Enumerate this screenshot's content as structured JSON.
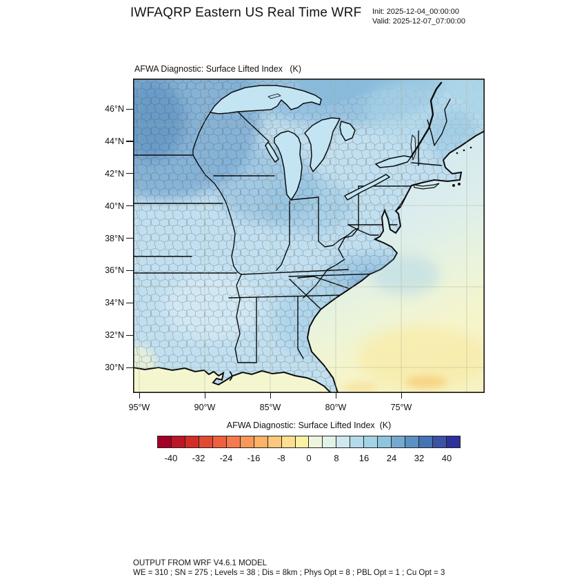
{
  "header": {
    "title": "IWFAQRP Eastern US Real Time WRF",
    "init_label": "Init: 2025-12-04_00:00:00",
    "valid_label": "Valid: 2025-12-07_07:00:00"
  },
  "plot": {
    "title": "AFWA Diagnostic: Surface Lifted Index   (K)",
    "y_ticks": [
      "46°N",
      "44°N",
      "42°N",
      "40°N",
      "38°N",
      "36°N",
      "34°N",
      "32°N",
      "30°N"
    ],
    "x_ticks": [
      "95°W",
      "90°W",
      "85°W",
      "80°W",
      "75°W"
    ]
  },
  "colorbar": {
    "title": "AFWA Diagnostic: Surface Lifted Index  (K)",
    "tick_labels": [
      "-40",
      "-32",
      "-24",
      "-16",
      "-8",
      "0",
      "8",
      "16",
      "24",
      "32",
      "40"
    ],
    "colors": [
      "#a50026",
      "#bc1726",
      "#d42d27",
      "#e04a33",
      "#ee613e",
      "#f57b4c",
      "#f99858",
      "#fdb366",
      "#fdc87b",
      "#fede90",
      "#fcf0a5",
      "#eff5dc",
      "#e2f2e7",
      "#cfe8f0",
      "#b5dbea",
      "#a3d3e5",
      "#8ec4dd",
      "#73aace",
      "#5b91c3",
      "#4574b4",
      "#3b53a5",
      "#2e319a"
    ]
  },
  "footer": {
    "line1": "OUTPUT FROM WRF V4.6.1 MODEL",
    "line2": "WE = 310 ; SN = 275 ; Levels = 38 ; Dis = 8km ; Phys Opt = 8 ; PBL Opt = 1 ; Cu Opt = 3"
  },
  "chart_data": {
    "type": "heatmap",
    "title": "AFWA Diagnostic: Surface Lifted Index (K)",
    "suptitle": "IWFAQRP Eastern US Real Time WRF",
    "init_time": "2025-12-04_00:00:00",
    "valid_time": "2025-12-07_07:00:00",
    "units": "K",
    "x_tick_labels": [
      "95°W",
      "90°W",
      "85°W",
      "80°W",
      "75°W"
    ],
    "y_tick_labels": [
      "46°N",
      "44°N",
      "42°N",
      "40°N",
      "38°N",
      "36°N",
      "34°N",
      "32°N",
      "30°N"
    ],
    "lon_range_west_deg": [
      95.5,
      70.5
    ],
    "lat_range_north_deg": [
      28.4,
      47.8
    ],
    "contour_interval_K": 4,
    "level_min_K": -44,
    "level_max_K": 44,
    "colorbar_tick_values": [
      -40,
      -32,
      -24,
      -16,
      -8,
      0,
      8,
      16,
      24,
      32,
      40
    ],
    "palette": [
      "#a50026",
      "#bc1726",
      "#d42d27",
      "#e04a33",
      "#ee613e",
      "#f57b4c",
      "#f99858",
      "#fdb366",
      "#fdc87b",
      "#fede90",
      "#fcf0a5",
      "#eff5dc",
      "#e2f2e7",
      "#cfe8f0",
      "#b5dbea",
      "#a3d3e5",
      "#8ec4dd",
      "#73aace",
      "#5b91c3",
      "#4574b4",
      "#3b53a5",
      "#2e319a"
    ],
    "legend_position": "bottom",
    "grid": "5-degree graticule, gray",
    "overlays": [
      "US state borders",
      "US county borders",
      "coastlines",
      "Great Lakes"
    ],
    "field_summary": [
      {
        "region": "Minnesota / upper Midwest",
        "approx_value_K": 30
      },
      {
        "region": "Wisconsin / northern Illinois",
        "approx_value_K": 24
      },
      {
        "region": "Ontario, Canada north of Great Lakes",
        "approx_value_K": 22
      },
      {
        "region": "Great Lakes water surfaces",
        "approx_value_K": 12
      },
      {
        "region": "Ohio Valley / Kentucky / Tennessee",
        "approx_value_K": 12
      },
      {
        "region": "Northeast US / New England",
        "approx_value_K": 10
      },
      {
        "region": "Southern Virginia / North Carolina inland max",
        "approx_value_K": 20
      },
      {
        "region": "Deep South (MS / AL / GA)",
        "approx_value_K": 10
      },
      {
        "region": "Atlantic nearshore waters",
        "approx_value_K": 8
      },
      {
        "region": "Gulf of Mexico coastal waters",
        "approx_value_K": -2
      },
      {
        "region": "Atlantic offshore, southeast corner",
        "approx_value_K": -6
      }
    ]
  }
}
